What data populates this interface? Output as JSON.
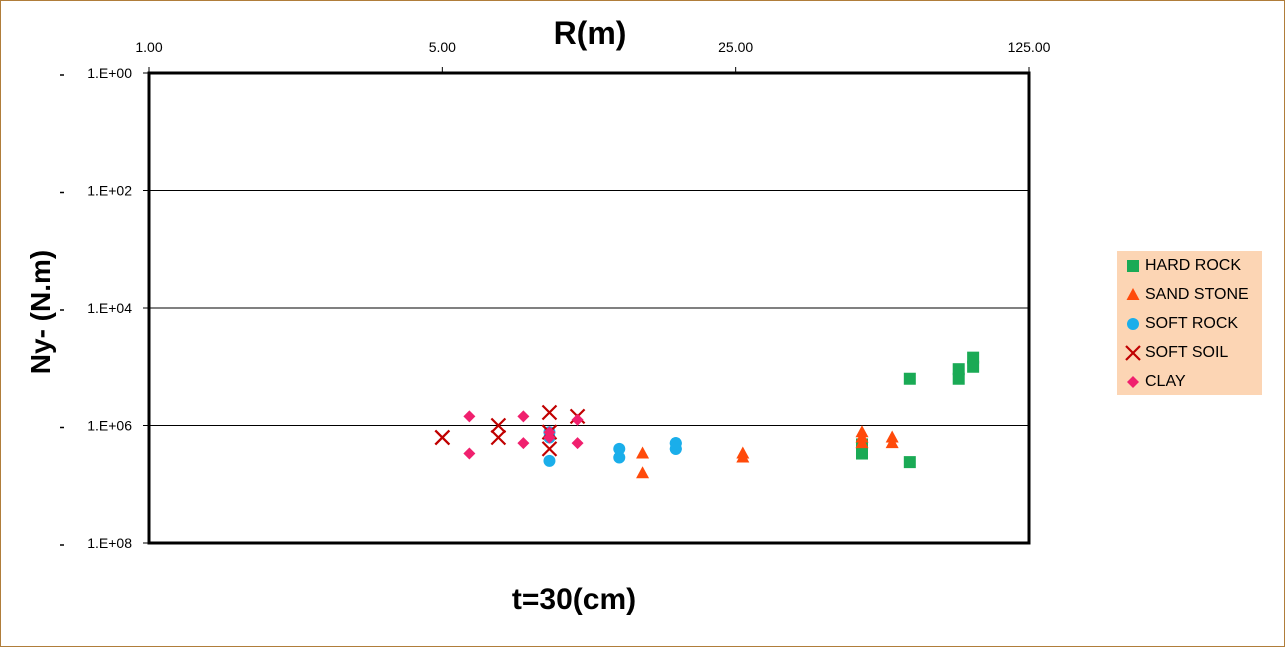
{
  "chart_data": {
    "type": "scatter",
    "title": "R(m)",
    "xlabel": "t=30(cm)",
    "ylabel": "Ny- (N.m)",
    "x_scale": "log5",
    "y_scale": "log",
    "y_reversed": true,
    "xlim": [
      1,
      125
    ],
    "ylim_exponent": [
      0,
      8
    ],
    "x_tick_labels": [
      "1.00",
      "5.00",
      "25.00",
      "125.00"
    ],
    "y_tick_labels": [
      "1.E+00",
      "1.E+02",
      "1.E+04",
      "1.E+06",
      "1.E+08"
    ],
    "grid": "horizontal",
    "legend_position": "right",
    "series": [
      {
        "name": "HARD ROCK",
        "marker": "square",
        "color": "#1aaa55",
        "points": [
          [
            50,
            2100000.0
          ],
          [
            50,
            3000000.0
          ],
          [
            65,
            160000.0
          ],
          [
            65,
            4200000.0
          ],
          [
            85,
            160000.0
          ],
          [
            85,
            110000.0
          ],
          [
            92,
            70000.0
          ],
          [
            92,
            100000.0
          ]
        ]
      },
      {
        "name": "SAND STONE",
        "marker": "triangle",
        "color": "#ff4a0a",
        "points": [
          [
            15,
            3000000.0
          ],
          [
            15,
            6500000.0
          ],
          [
            26,
            3500000.0
          ],
          [
            26,
            3000000.0
          ],
          [
            50,
            1600000.0
          ],
          [
            50,
            2000000.0
          ],
          [
            50,
            1300000.0
          ],
          [
            59,
            1600000.0
          ],
          [
            59,
            2000000.0
          ]
        ]
      },
      {
        "name": "SOFT ROCK",
        "marker": "circle",
        "color": "#1aaeea",
        "points": [
          [
            9,
            1300000.0
          ],
          [
            9,
            1600000.0
          ],
          [
            9,
            4000000.0
          ],
          [
            13.2,
            3500000.0
          ],
          [
            13.2,
            2500000.0
          ],
          [
            18,
            2500000.0
          ],
          [
            18,
            2500000.0
          ],
          [
            18,
            2000000.0
          ],
          [
            18,
            2000000.0
          ]
        ]
      },
      {
        "name": "SOFT SOIL",
        "marker": "x",
        "color": "#c00000",
        "points": [
          [
            5,
            1600000.0
          ],
          [
            5,
            1600000.0
          ],
          [
            6.8,
            1600000.0
          ],
          [
            6.8,
            1000000.0
          ],
          [
            9,
            1300000.0
          ],
          [
            9,
            600000.0
          ],
          [
            9,
            2500000.0
          ],
          [
            10.5,
            700000.0
          ]
        ]
      },
      {
        "name": "CLAY",
        "marker": "diamond",
        "color": "#f0206e",
        "points": [
          [
            5.8,
            700000.0
          ],
          [
            5.8,
            3000000.0
          ],
          [
            7.8,
            2000000.0
          ],
          [
            7.8,
            700000.0
          ],
          [
            9,
            1600000.0
          ],
          [
            9,
            1300000.0
          ],
          [
            9,
            1600000.0
          ],
          [
            10.5,
            800000.0
          ],
          [
            10.5,
            2000000.0
          ]
        ]
      }
    ]
  }
}
